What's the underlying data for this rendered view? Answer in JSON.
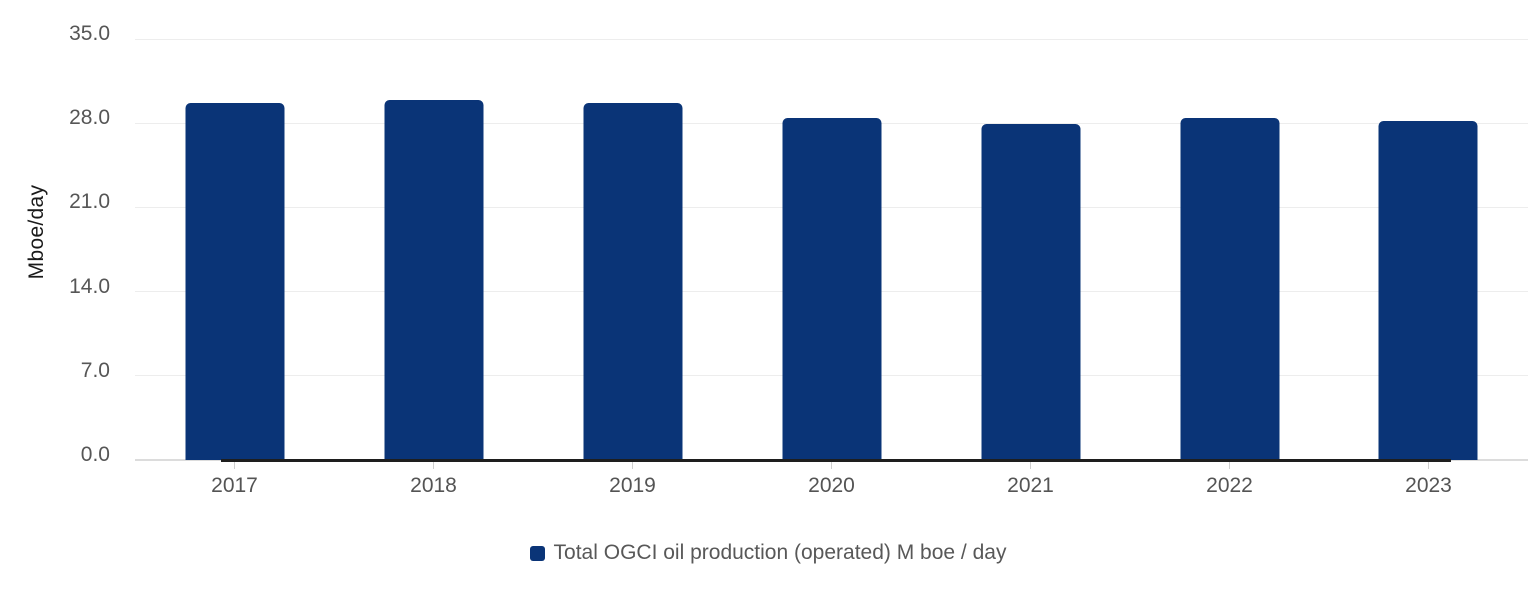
{
  "chart_data": {
    "type": "bar",
    "categories": [
      "2017",
      "2018",
      "2019",
      "2020",
      "2021",
      "2022",
      "2023"
    ],
    "values": [
      29.7,
      29.9,
      29.7,
      28.4,
      27.9,
      28.4,
      28.2
    ],
    "title": "",
    "xlabel": "",
    "ylabel": "Mboe/day",
    "ylim": [
      0,
      35
    ],
    "yticks": [
      0,
      7,
      14,
      21,
      28,
      35
    ],
    "ytick_labels": [
      "0.0",
      "7.0",
      "14.0",
      "21.0",
      "28.0",
      "35.0"
    ],
    "grid": true,
    "bar_color": "#0a3477",
    "legend_position": "bottom",
    "legend": [
      {
        "label": "Total OGCI oil production (operated) M boe / day",
        "color": "#0a3477"
      }
    ]
  },
  "colors": {
    "background": "#ffffff",
    "gridline": "#ededed",
    "axis_line_gray": "#dcdcdc",
    "axis_baseline_black": "#1e1e1e",
    "tick": "#cfcfcf",
    "tick_label": "#565656",
    "x_label": "#545454",
    "legend_text": "#585858",
    "y_title": "#1a1a1a",
    "bar": "#0a3477"
  }
}
